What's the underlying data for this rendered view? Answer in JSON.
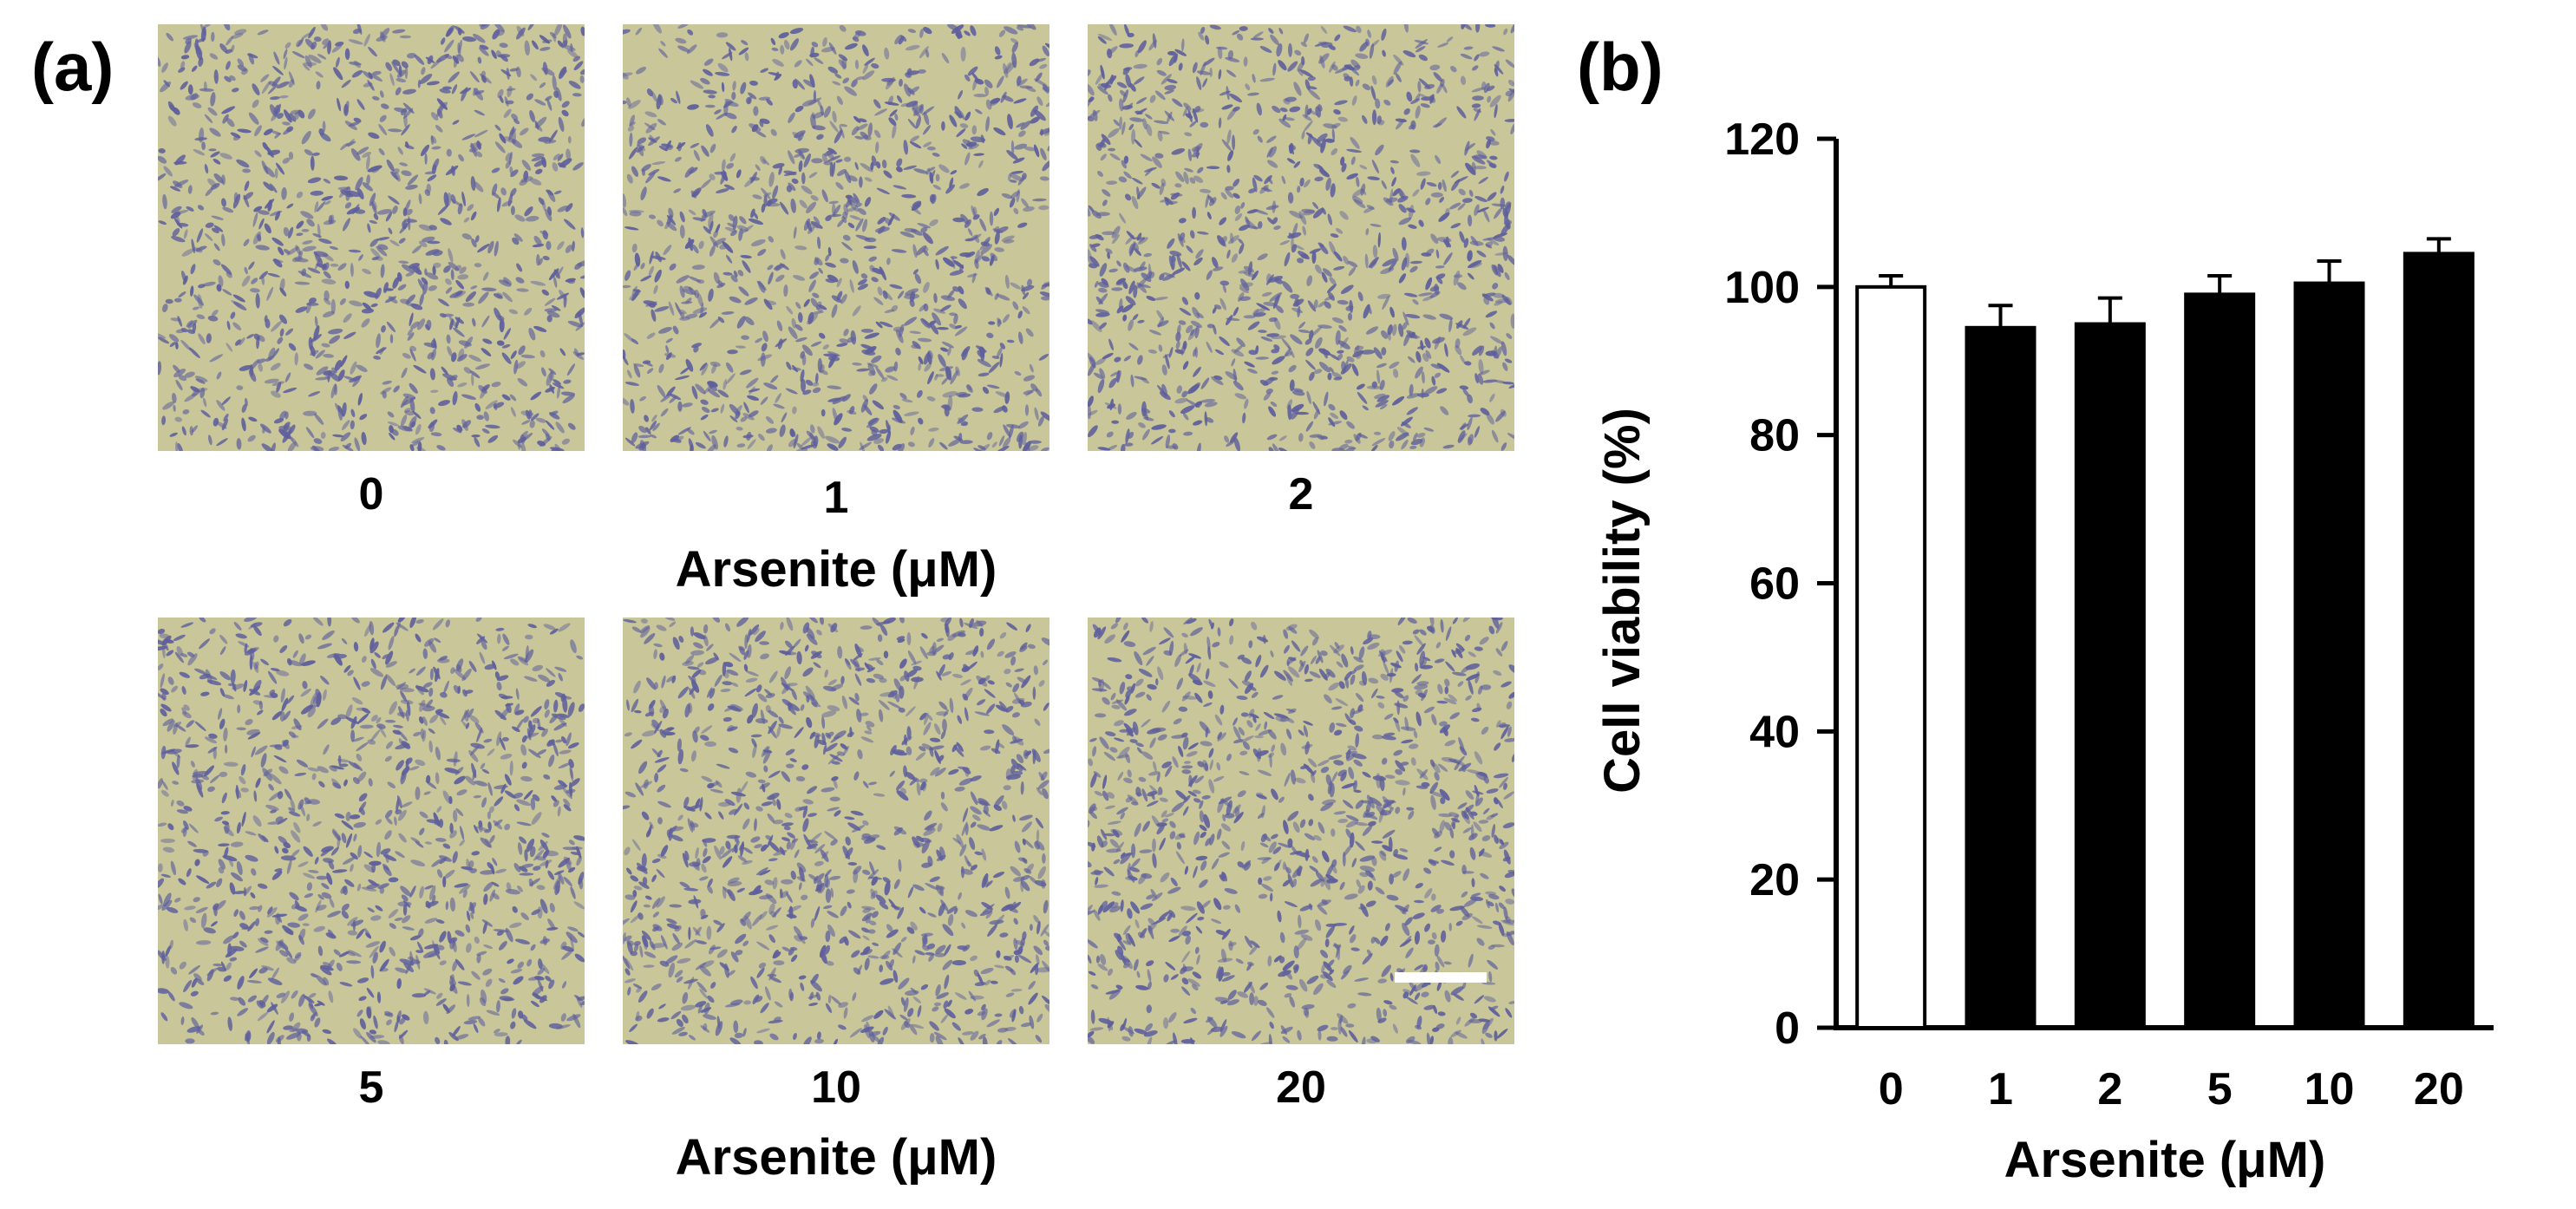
{
  "panel_a": {
    "label": "(a)",
    "images": [
      {
        "dose": "0",
        "desc": "micrograph-0"
      },
      {
        "dose": "1",
        "desc": "micrograph-1"
      },
      {
        "dose": "2",
        "desc": "micrograph-2"
      },
      {
        "dose": "5",
        "desc": "micrograph-5"
      },
      {
        "dose": "10",
        "desc": "micrograph-10"
      },
      {
        "dose": "20",
        "desc": "micrograph-20"
      }
    ],
    "top_group_label": "Arsenite (μM)",
    "bottom_group_label": "Arsenite (μM)",
    "image_colors": {
      "background": "#c9c79a",
      "cell": "#5e5f9c"
    }
  },
  "panel_b": {
    "label": "(b)"
  },
  "chart_data": {
    "type": "bar",
    "categories": [
      "0",
      "1",
      "2",
      "5",
      "10",
      "20"
    ],
    "values": [
      100,
      94.5,
      95,
      99,
      100.5,
      104.5
    ],
    "errors": [
      1.5,
      3,
      3.5,
      2.5,
      3,
      2
    ],
    "bar_fills": [
      "#ffffff",
      "#000000",
      "#000000",
      "#000000",
      "#000000",
      "#000000"
    ],
    "xlabel": "Arsenite (μM)",
    "ylabel": "Cell viability (%)",
    "ylim": [
      0,
      120
    ],
    "yticks": [
      0,
      20,
      40,
      60,
      80,
      100,
      120
    ],
    "grid": false
  }
}
